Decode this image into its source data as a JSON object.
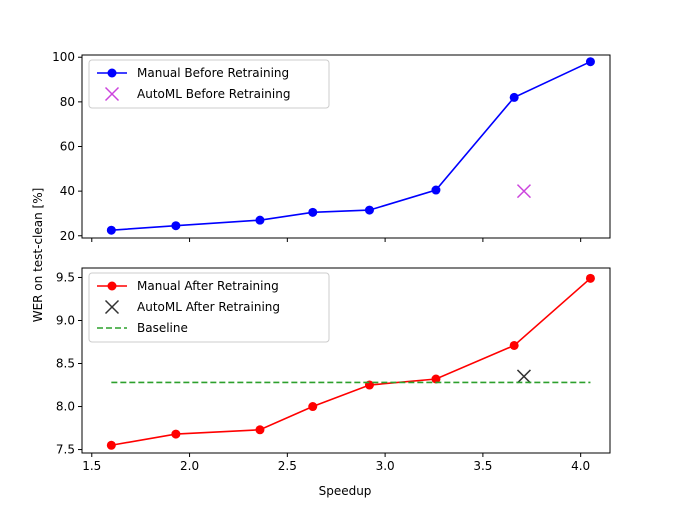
{
  "chart_data": [
    {
      "type": "line",
      "xlabel": "",
      "ylabel": "WER on test-clean [%]",
      "xlim": [
        1.45,
        4.15
      ],
      "ylim": [
        19,
        101
      ],
      "yticks": [
        20,
        40,
        60,
        80,
        100
      ],
      "xticks": [
        1.5,
        2.0,
        2.5,
        3.0,
        3.5,
        4.0
      ],
      "show_xtick_labels": false,
      "grid": false,
      "legend_position": "top-left",
      "series": [
        {
          "name": "Manual Before Retraining",
          "style": "line-circle",
          "color": "#0000ff",
          "x": [
            1.6,
            1.93,
            2.36,
            2.63,
            2.92,
            3.26,
            3.66,
            4.05
          ],
          "y": [
            22.5,
            24.5,
            27.0,
            30.5,
            31.5,
            40.5,
            82.0,
            98.0
          ]
        },
        {
          "name": "AutoML Before Retraining",
          "style": "x-marker",
          "color": "#cc44dd",
          "x": [
            3.71
          ],
          "y": [
            40.0
          ]
        }
      ]
    },
    {
      "type": "line",
      "xlabel": "Speedup",
      "ylabel": "",
      "xlim": [
        1.45,
        4.15
      ],
      "ylim": [
        7.46,
        9.61
      ],
      "yticks": [
        7.5,
        8.0,
        8.5,
        9.0,
        9.5
      ],
      "ytick_labels": [
        "7.5",
        "8.0",
        "8.5",
        "9.0",
        "9.5"
      ],
      "xticks": [
        1.5,
        2.0,
        2.5,
        3.0,
        3.5,
        4.0
      ],
      "xtick_labels": [
        "1.5",
        "2.0",
        "2.5",
        "3.0",
        "3.5",
        "4.0"
      ],
      "show_xtick_labels": true,
      "grid": false,
      "legend_position": "top-left",
      "series": [
        {
          "name": "Manual After Retraining",
          "style": "line-circle",
          "color": "#ff0000",
          "x": [
            1.6,
            1.93,
            2.36,
            2.63,
            2.92,
            3.26,
            3.66,
            4.05
          ],
          "y": [
            7.55,
            7.68,
            7.73,
            8.0,
            8.25,
            8.32,
            8.71,
            9.49
          ]
        },
        {
          "name": "AutoML After Retraining",
          "style": "x-marker",
          "color": "#333333",
          "x": [
            3.71
          ],
          "y": [
            8.35
          ]
        },
        {
          "name": "Baseline",
          "style": "dashed",
          "color": "#2ca02c",
          "x": [
            1.6,
            4.05
          ],
          "y": [
            8.28,
            8.28
          ]
        }
      ]
    }
  ]
}
